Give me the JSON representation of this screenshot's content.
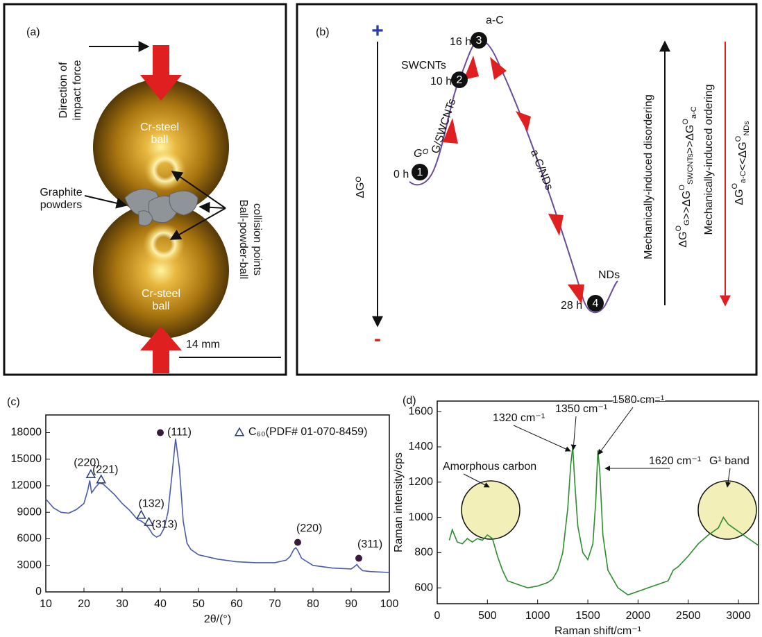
{
  "panel_a": {
    "label": "(a)",
    "force_label": [
      "Direction of",
      "impact force"
    ],
    "ball_top": [
      "Cr-steel",
      "ball"
    ],
    "ball_bottom": [
      "Cr-steel",
      "ball"
    ],
    "powder_label": [
      "Graphite",
      "powders"
    ],
    "collision_label": [
      "Ball-powder-ball",
      "collision points"
    ],
    "scale_bar": "14 mm"
  },
  "panel_b": {
    "label": "(b)",
    "plus": "+",
    "minus": "-",
    "axis_label": "ΔGᴼ",
    "nodes": [
      {
        "num": "1",
        "time": "0 h",
        "name": "Gᴼ"
      },
      {
        "num": "2",
        "time": "10 h",
        "name": "SWCNTs"
      },
      {
        "num": "3",
        "time": "16 h",
        "name": "a-C"
      },
      {
        "num": "4",
        "time": "28 h",
        "name": "NDs"
      }
    ],
    "path_labels": [
      "G/SWCNTs",
      "a-C/NDs"
    ],
    "disordering": "Mechanically-induced disordering",
    "disordering_relation": [
      {
        "text": "ΔG",
        "sub": "G",
        "sup": "O"
      },
      {
        "text": ">>ΔG",
        "sub": "SWCNTs",
        "sup": "O"
      },
      {
        "text": ">>ΔG",
        "sub": "a-C",
        "sup": "O"
      }
    ],
    "ordering": "Mechanically-induced ordering",
    "ordering_relation": [
      {
        "text": "ΔG",
        "sub": "a-C",
        "sup": "O"
      },
      {
        "text": "<<ΔG",
        "sub": "NDs",
        "sup": "O"
      }
    ]
  },
  "chart_data": [
    {
      "type": "line",
      "label": "(c)",
      "xlabel": "2θ/(°)",
      "color": "#4a5aa8",
      "x": [
        10,
        12,
        14,
        16,
        18,
        20,
        21,
        21.5,
        22,
        23,
        24,
        25,
        26,
        28,
        30,
        32,
        34,
        35,
        36,
        37,
        38,
        39,
        40,
        41,
        42,
        43,
        44,
        45,
        46,
        47,
        48,
        50,
        55,
        60,
        65,
        70,
        73,
        74,
        75,
        75.5,
        76,
        77,
        80,
        85,
        90,
        91,
        91.5,
        92,
        93,
        95,
        100
      ],
      "values": [
        10500,
        9500,
        9000,
        8900,
        9300,
        10000,
        11500,
        12600,
        11200,
        11800,
        12300,
        12200,
        11800,
        11000,
        10000,
        9200,
        8200,
        8000,
        7700,
        7200,
        6500,
        6200,
        6400,
        7200,
        9000,
        13000,
        17300,
        14000,
        8000,
        5500,
        4800,
        4200,
        3700,
        3400,
        3300,
        3300,
        3600,
        4000,
        4800,
        5000,
        4700,
        3800,
        3000,
        2700,
        2600,
        2900,
        3100,
        2800,
        2400,
        2300,
        2200
      ],
      "xlim": [
        10,
        100
      ],
      "xticks": [
        10,
        20,
        30,
        40,
        50,
        60,
        70,
        80,
        90,
        100
      ],
      "ylim": [
        0,
        20000
      ],
      "yticks": [
        0,
        3000,
        6000,
        9000,
        12000,
        15000,
        18000
      ],
      "annotations": [
        {
          "label": "(220)",
          "x": 21.8,
          "y": 13300,
          "marker": "triangle"
        },
        {
          "label": "(221)",
          "x": 24.5,
          "y": 12700,
          "marker": "triangle"
        },
        {
          "label": "(132)",
          "x": 35,
          "y": 8700,
          "marker": "triangle"
        },
        {
          "label": "(313)",
          "x": 37,
          "y": 7900,
          "marker": "triangle"
        },
        {
          "label": "(111)",
          "x": 40,
          "y": 18000,
          "marker": "circle"
        },
        {
          "label": "(220)",
          "x": 76,
          "y": 5600,
          "marker": "circle"
        },
        {
          "label": "(311)",
          "x": 92,
          "y": 3800,
          "marker": "circle"
        }
      ],
      "legend": {
        "marker": "triangle",
        "label": "C₆₀(PDF# 01-070-8459)"
      }
    },
    {
      "type": "line",
      "label": "(d)",
      "xlabel": "Raman shift/cm⁻¹",
      "ylabel": "Raman intensity/cps",
      "color": "#2e8b2e",
      "x": [
        120,
        150,
        200,
        250,
        300,
        350,
        400,
        450,
        500,
        550,
        600,
        650,
        700,
        800,
        900,
        1000,
        1100,
        1150,
        1200,
        1250,
        1300,
        1330,
        1350,
        1370,
        1400,
        1450,
        1500,
        1550,
        1580,
        1600,
        1620,
        1650,
        1700,
        1800,
        1900,
        2000,
        2100,
        2200,
        2300,
        2350,
        2400,
        2500,
        2600,
        2700,
        2800,
        2850,
        2900,
        3000,
        3100,
        3200
      ],
      "values": [
        870,
        930,
        860,
        850,
        880,
        860,
        880,
        870,
        900,
        880,
        780,
        700,
        640,
        620,
        600,
        610,
        630,
        650,
        700,
        800,
        1050,
        1300,
        1400,
        1200,
        950,
        800,
        760,
        850,
        1100,
        1380,
        1250,
        900,
        700,
        600,
        560,
        580,
        600,
        620,
        640,
        700,
        720,
        780,
        850,
        900,
        940,
        1000,
        960,
        920,
        880,
        840
      ],
      "xlim": [
        0,
        3200
      ],
      "xticks": [
        0,
        500,
        1000,
        1500,
        2000,
        2500,
        3000
      ],
      "ylim": [
        510,
        1660
      ],
      "yticks": [
        600,
        800,
        1000,
        1200,
        1400,
        1600
      ],
      "annotations": [
        {
          "label": "Amorphous carbon"
        },
        {
          "label": "1320 cm⁻¹"
        },
        {
          "label": "1350 cm⁻¹"
        },
        {
          "label": "1580 cm⁻¹"
        },
        {
          "label": "1620 cm⁻¹"
        },
        {
          "label": "G¹ band"
        }
      ]
    }
  ]
}
